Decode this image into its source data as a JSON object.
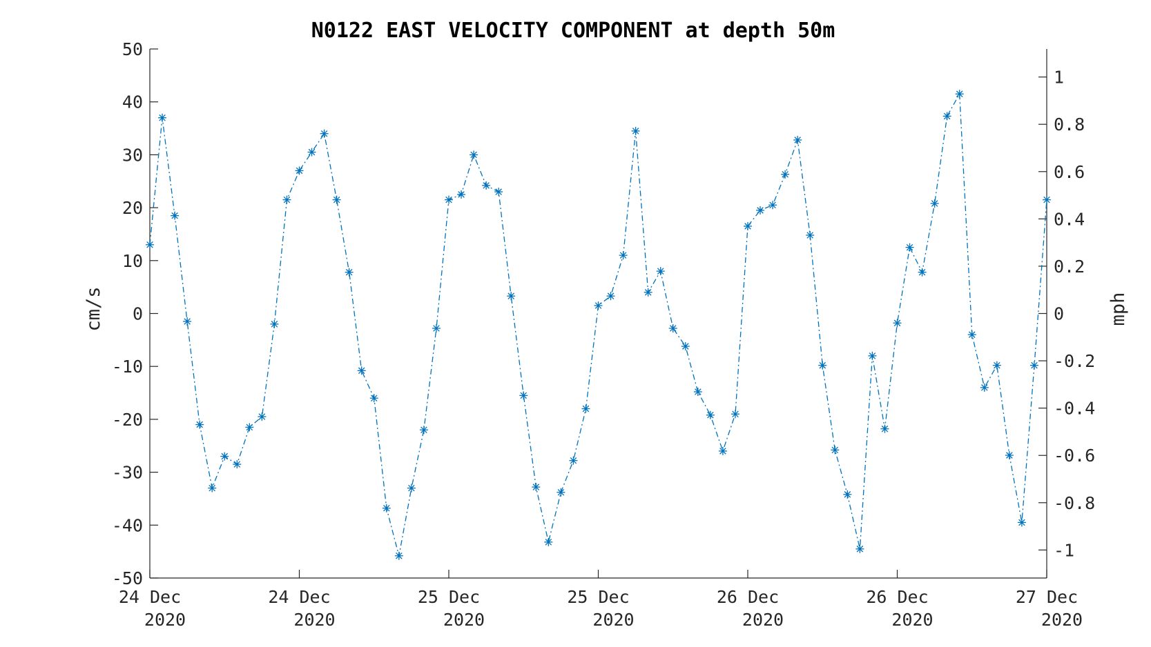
{
  "chart_data": {
    "type": "line",
    "title": "N0122 EAST VELOCITY COMPONENT at depth 50m",
    "ylabel": "cm/s",
    "y2label": "mph",
    "ylim": [
      -50,
      50
    ],
    "y2lim": [
      -1.1185,
      1.1185
    ],
    "yticks": [
      50,
      40,
      30,
      20,
      10,
      0,
      -10,
      -20,
      -30,
      -40,
      -50
    ],
    "y2ticks": [
      1,
      0.8,
      0.6,
      0.4,
      0.2,
      0,
      -0.2,
      -0.4,
      -0.6,
      -0.8,
      -1
    ],
    "y2ticklabels": [
      "1",
      "0.8",
      "0.6",
      "0.4",
      "0.2",
      "0",
      "-0.2",
      "-0.4",
      "-0.6",
      "-0.8",
      "-1"
    ],
    "xlim": [
      0,
      72
    ],
    "xticks": [
      {
        "hour": 0,
        "line1": "24 Dec",
        "line2": "2020"
      },
      {
        "hour": 12,
        "line1": "24 Dec",
        "line2": "2020"
      },
      {
        "hour": 24,
        "line1": "25 Dec",
        "line2": "2020"
      },
      {
        "hour": 36,
        "line1": "25 Dec",
        "line2": "2020"
      },
      {
        "hour": 48,
        "line1": "26 Dec",
        "line2": "2020"
      },
      {
        "hour": 60,
        "line1": "26 Dec",
        "line2": "2020"
      },
      {
        "hour": 72,
        "line1": "27 Dec",
        "line2": "2020"
      }
    ],
    "grid": false,
    "series": [
      {
        "color": "#0072BD",
        "marker": "asterisk",
        "line_style": "dash-dot",
        "x": [
          0,
          1,
          2,
          3,
          4,
          5,
          6,
          7,
          8,
          9,
          10,
          11,
          12,
          13,
          14,
          15,
          16,
          17,
          18,
          19,
          20,
          21,
          22,
          23,
          24,
          25,
          26,
          27,
          28,
          29,
          30,
          31,
          32,
          33,
          34,
          35,
          36,
          37,
          38,
          39,
          40,
          41,
          42,
          43,
          44,
          45,
          46,
          47,
          48,
          49,
          50,
          51,
          52,
          53,
          54,
          55,
          56,
          57,
          58,
          59,
          60,
          61,
          62,
          63,
          64,
          65,
          66,
          67,
          68,
          69,
          70,
          71,
          72
        ],
        "values": [
          13,
          37,
          18.5,
          -1.5,
          -21,
          -33,
          -27,
          -28.5,
          -21.5,
          -19.5,
          -2,
          21.5,
          27,
          30.5,
          34,
          21.5,
          7.8,
          -10.8,
          -16,
          -36.8,
          -45.8,
          -33,
          -22,
          -2.8,
          21.5,
          22.5,
          30,
          24.2,
          23,
          3.3,
          -15.5,
          -32.8,
          -43.2,
          -33.8,
          -27.8,
          -18,
          1.5,
          3.3,
          11,
          34.5,
          4,
          8,
          -2.8,
          -6.2,
          -14.8,
          -19.2,
          -26,
          -19,
          16.5,
          19.5,
          20.5,
          26.3,
          32.8,
          14.8,
          -9.8,
          -25.8,
          -34.2,
          -44.5,
          -8,
          -21.8,
          -1.8,
          12.5,
          7.8,
          20.8,
          37.3,
          41.5,
          -4,
          -14,
          -9.8,
          -26.8,
          -39.5,
          -9.8,
          21.5
        ]
      }
    ]
  }
}
